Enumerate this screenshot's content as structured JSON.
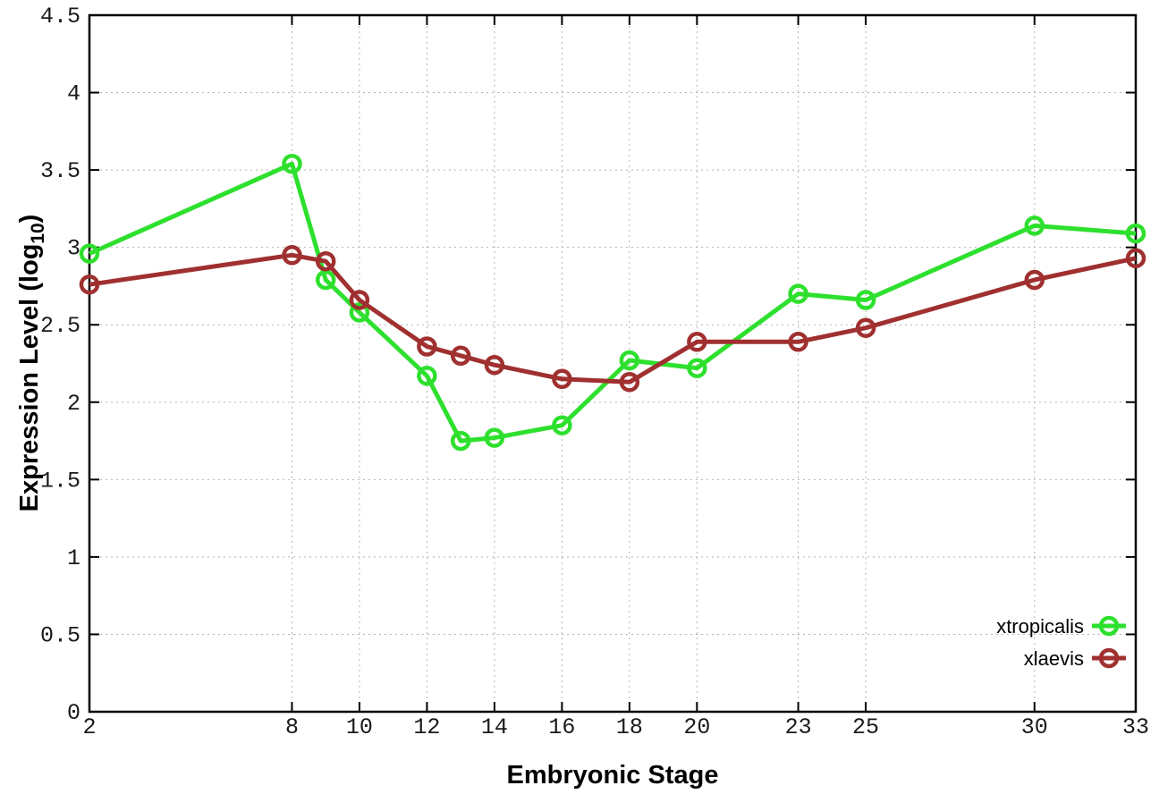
{
  "chart_data": {
    "type": "line",
    "title": "",
    "xlabel": "Embryonic Stage",
    "ylabel": "Expression Level (log10)",
    "ylabel_parts": {
      "pre": "Expression Level (log",
      "sub": "10",
      "post": ")"
    },
    "xlim": [
      2,
      33
    ],
    "ylim": [
      0,
      4.5
    ],
    "grid": true,
    "legend_position": "bottom-right",
    "marker": "open-circle",
    "x": [
      2,
      8,
      9,
      10,
      12,
      13,
      14,
      16,
      18,
      20,
      23,
      25,
      30,
      33
    ],
    "series": [
      {
        "name": "xtropicalis",
        "color": "#2ee02e",
        "values": [
          2.96,
          3.54,
          2.79,
          2.58,
          2.17,
          1.75,
          1.77,
          1.85,
          2.27,
          2.22,
          2.7,
          2.66,
          3.14,
          3.09
        ]
      },
      {
        "name": "xlaevis",
        "color": "#a03030",
        "values": [
          2.76,
          2.95,
          2.91,
          2.66,
          2.36,
          2.3,
          2.24,
          2.15,
          2.13,
          2.39,
          2.39,
          2.48,
          2.79,
          2.93
        ]
      }
    ],
    "xticks": [
      {
        "value": 2,
        "label": "2"
      },
      {
        "value": 8,
        "label": "8"
      },
      {
        "value": 10,
        "label": "10"
      },
      {
        "value": 12,
        "label": "12"
      },
      {
        "value": 14,
        "label": "14"
      },
      {
        "value": 16,
        "label": "16"
      },
      {
        "value": 18,
        "label": "18"
      },
      {
        "value": 20,
        "label": "20"
      },
      {
        "value": 23,
        "label": "23"
      },
      {
        "value": 25,
        "label": "25"
      },
      {
        "value": 30,
        "label": "30"
      },
      {
        "value": 33,
        "label": "33"
      }
    ],
    "yticks": [
      {
        "value": 0,
        "label": "0"
      },
      {
        "value": 0.5,
        "label": "0.5"
      },
      {
        "value": 1,
        "label": "1"
      },
      {
        "value": 1.5,
        "label": "1.5"
      },
      {
        "value": 2,
        "label": "2"
      },
      {
        "value": 2.5,
        "label": "2.5"
      },
      {
        "value": 3,
        "label": "3"
      },
      {
        "value": 3.5,
        "label": "3.5"
      },
      {
        "value": 4,
        "label": "4"
      },
      {
        "value": 4.5,
        "label": "4.5"
      }
    ],
    "colors": {
      "grid": "#b3b3b3",
      "axis": "#000000",
      "background": "#ffffff",
      "tick_label": "#1a1a1a"
    }
  }
}
